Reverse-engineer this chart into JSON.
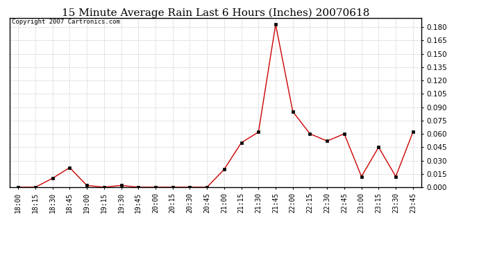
{
  "title": "15 Minute Average Rain Last 6 Hours (Inches) 20070618",
  "copyright": "Copyright 2007 Cartronics.com",
  "line_color": "#CC0000",
  "marker_color": "#000000",
  "background_color": "#ffffff",
  "grid_color": "#cccccc",
  "x_labels": [
    "18:00",
    "18:15",
    "18:30",
    "18:45",
    "19:00",
    "19:15",
    "19:30",
    "19:45",
    "20:00",
    "20:15",
    "20:30",
    "20:45",
    "21:00",
    "21:15",
    "21:30",
    "21:45",
    "22:00",
    "22:15",
    "22:30",
    "22:45",
    "23:00",
    "23:15",
    "23:30",
    "23:45"
  ],
  "y_values": [
    0.0,
    0.0,
    0.01,
    0.022,
    0.002,
    0.0,
    0.002,
    0.0,
    0.0,
    0.0,
    0.0,
    0.0,
    0.02,
    0.05,
    0.062,
    0.183,
    0.085,
    0.06,
    0.052,
    0.06,
    0.012,
    0.045,
    0.012,
    0.062
  ],
  "ylim_min": 0.0,
  "ylim_max": 0.19,
  "ytick_step": 0.015,
  "title_fontsize": 11,
  "copyright_fontsize": 6.5,
  "tick_fontsize": 7,
  "ytick_fontsize": 7.5
}
